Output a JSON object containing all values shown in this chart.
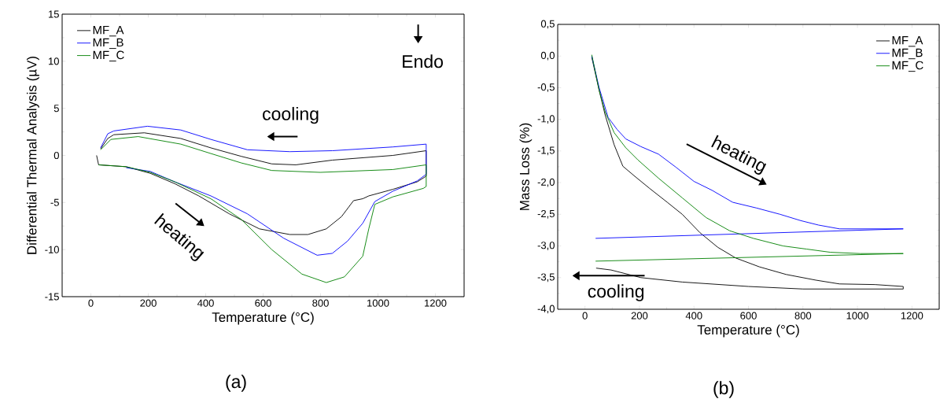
{
  "chart_data": [
    {
      "type": "line",
      "xlabel": "Temperature (°C)",
      "ylabel": "Differential Thermal Analysis (µV)",
      "xlim": [
        -100,
        1300
      ],
      "ylim": [
        -15,
        15
      ],
      "xticks": [
        0,
        200,
        400,
        600,
        800,
        1000,
        1200
      ],
      "yticks": [
        -15,
        -10,
        -5,
        0,
        5,
        10,
        15
      ],
      "legend": "top left",
      "series": [
        {
          "name": "MF_A",
          "color": "#000000",
          "x": [
            20,
            27,
            123,
            207,
            292,
            376,
            482,
            587,
            693,
            756,
            820,
            873,
            915,
            947,
            968,
            1052,
            1137,
            1168,
            1168,
            1052,
            841,
            714,
            630,
            524,
            418,
            313,
            186,
            80,
            59,
            34
          ],
          "values": [
            0,
            -1.0,
            -1.2,
            -1.9,
            -3.0,
            -4.3,
            -6.2,
            -7.8,
            -8.4,
            -8.4,
            -7.8,
            -6.5,
            -4.8,
            -4.6,
            -4.3,
            -3.6,
            -2.8,
            -2.2,
            0.5,
            0,
            -0.5,
            -1.0,
            -0.9,
            -0.1,
            0.8,
            1.8,
            2.4,
            2.2,
            1.8,
            0.7
          ]
        },
        {
          "name": "MF_B",
          "color": "#0000ff",
          "x": [
            123,
            207,
            292,
            418,
            545,
            672,
            788,
            841,
            894,
            947,
            989,
            1052,
            1137,
            1168,
            1168,
            1052,
            841,
            693,
            545,
            418,
            313,
            197,
            80,
            59,
            34
          ],
          "values": [
            -1.3,
            -1.7,
            -2.8,
            -4.3,
            -6.2,
            -8.8,
            -10.6,
            -10.4,
            -9.1,
            -7.2,
            -4.9,
            -3.8,
            -2.7,
            -2.0,
            1.2,
            0.9,
            0.5,
            0.4,
            0.6,
            1.7,
            2.7,
            3.1,
            2.6,
            2.3,
            0.8
          ]
        },
        {
          "name": "MF_C",
          "color": "#008000",
          "x": [
            27,
            123,
            207,
            292,
            418,
            524,
            630,
            735,
            820,
            883,
            947,
            968,
            989,
            1052,
            1158,
            1168,
            1168,
            1052,
            799,
            630,
            524,
            418,
            313,
            165,
            70,
            34
          ],
          "values": [
            -1.0,
            -1.2,
            -1.8,
            -2.8,
            -4.6,
            -6.8,
            -10.0,
            -12.6,
            -13.5,
            -12.9,
            -10.7,
            -7.8,
            -5.2,
            -4.4,
            -3.5,
            -3.3,
            -1.0,
            -1.5,
            -1.8,
            -1.6,
            -0.8,
            0.2,
            1.2,
            2.0,
            1.7,
            0.6
          ]
        }
      ],
      "annotations": [
        "cooling",
        "heating",
        "Endo",
        "(a)"
      ]
    },
    {
      "type": "line",
      "xlabel": "Temperature (°C)",
      "ylabel": "Mass Loss (%)",
      "xlim": [
        -100,
        1300
      ],
      "ylim": [
        -4.0,
        0.5
      ],
      "xticks": [
        0,
        200,
        400,
        600,
        800,
        1000,
        1200
      ],
      "yticks": [
        {
          "value": -4.0,
          "label": "-4,0"
        },
        {
          "value": -3.5,
          "label": "-3,5"
        },
        {
          "value": -3.0,
          "label": "-3,0"
        },
        {
          "value": -2.5,
          "label": "-2,5"
        },
        {
          "value": -2.0,
          "label": "-2,0"
        },
        {
          "value": -1.5,
          "label": "-1,5"
        },
        {
          "value": -1.0,
          "label": "-1,0"
        },
        {
          "value": -0.5,
          "label": "-0,5"
        },
        {
          "value": 0.0,
          "label": "0,0"
        },
        {
          "value": 0.5,
          "label": "0,5"
        }
      ],
      "legend": "top right",
      "series": [
        {
          "name": "MF_A",
          "color": "#000000",
          "x": [
            25,
            52,
            74,
            107,
            139,
            183,
            237,
            302,
            357,
            422,
            487,
            553,
            640,
            738,
            847,
            934,
            1064,
            1168,
            1168,
            800,
            600,
            357,
            205,
            96,
            41
          ],
          "values": [
            -0.02,
            -0.54,
            -0.93,
            -1.4,
            -1.74,
            -1.9,
            -2.09,
            -2.31,
            -2.5,
            -2.79,
            -3.02,
            -3.19,
            -3.33,
            -3.45,
            -3.54,
            -3.6,
            -3.61,
            -3.64,
            -3.68,
            -3.68,
            -3.64,
            -3.57,
            -3.5,
            -3.38,
            -3.35
          ]
        },
        {
          "name": "MF_B",
          "color": "#0000ff",
          "x": [
            25,
            52,
            85,
            118,
            150,
            205,
            270,
            335,
            400,
            466,
            542,
            629,
            716,
            792,
            857,
            934,
            1168,
            39
          ],
          "values": [
            0,
            -0.5,
            -0.97,
            -1.16,
            -1.31,
            -1.43,
            -1.55,
            -1.76,
            -1.98,
            -2.12,
            -2.31,
            -2.4,
            -2.5,
            -2.6,
            -2.67,
            -2.73,
            -2.73,
            -2.88
          ]
        },
        {
          "name": "MF_C",
          "color": "#008000",
          "x": [
            25,
            52,
            74,
            107,
            150,
            194,
            270,
            357,
            444,
            531,
            618,
            727,
            814,
            901,
            1010,
            1168,
            39
          ],
          "values": [
            0.02,
            -0.54,
            -0.88,
            -1.21,
            -1.45,
            -1.64,
            -1.93,
            -2.24,
            -2.55,
            -2.76,
            -2.88,
            -3.0,
            -3.05,
            -3.1,
            -3.12,
            -3.12,
            -3.24
          ]
        }
      ],
      "annotations": [
        "heating",
        "cooling",
        "(b)"
      ]
    }
  ]
}
